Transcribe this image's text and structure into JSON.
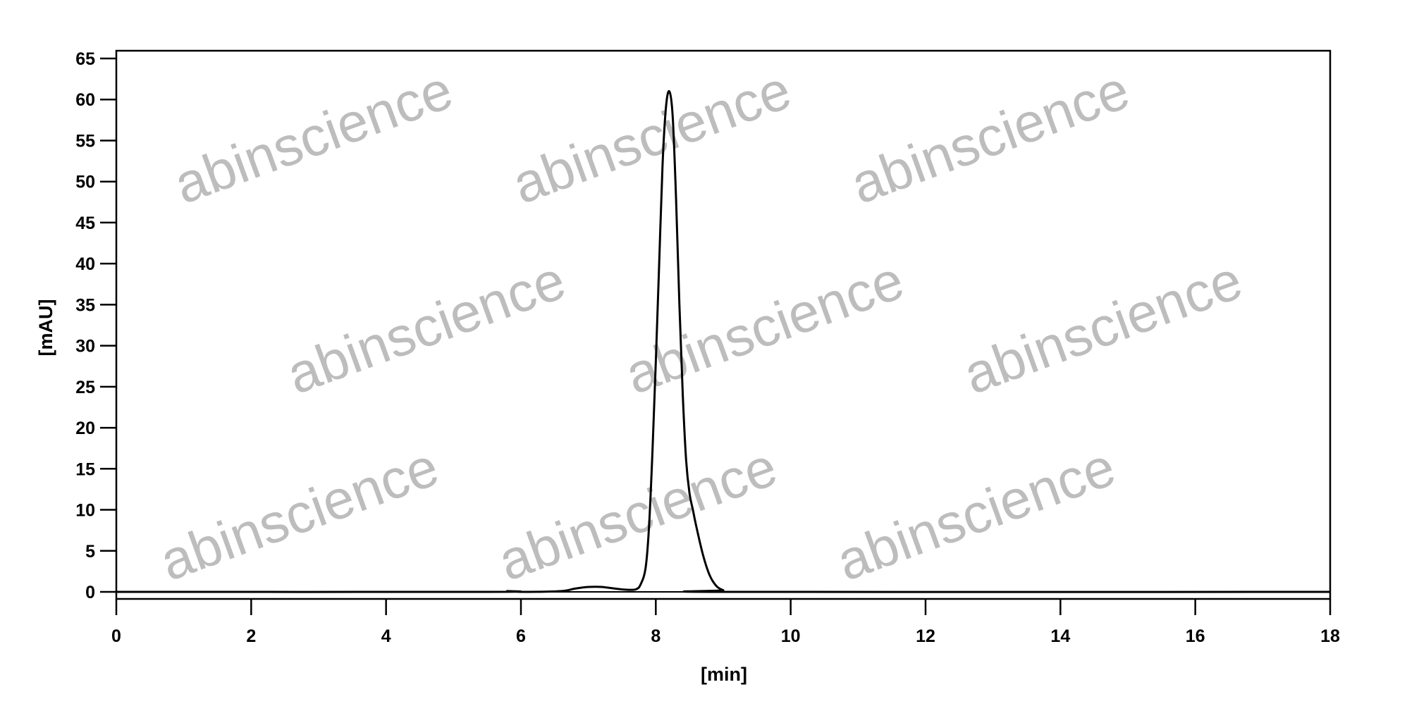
{
  "chart_data": {
    "type": "line",
    "title": "",
    "xlabel": "[min]",
    "ylabel": "[mAU]",
    "xlim": [
      0,
      18
    ],
    "ylim": [
      -0.9,
      65
    ],
    "xticks": [
      0,
      2,
      4,
      6,
      8,
      10,
      12,
      14,
      16,
      18
    ],
    "yticks": [
      0,
      5,
      10,
      15,
      20,
      25,
      30,
      35,
      40,
      45,
      50,
      55,
      60,
      65
    ],
    "grid": false,
    "line_color": "#000000",
    "series": [
      {
        "x": [
          0,
          5.5,
          5.8,
          6.0,
          6.6,
          6.8,
          7.0,
          7.2,
          7.5,
          7.7,
          7.78,
          7.85,
          7.9,
          7.95,
          8.0,
          8.05,
          8.1,
          8.15,
          8.2,
          8.25,
          8.3,
          8.35,
          8.4,
          8.45,
          8.5,
          8.55,
          8.6,
          8.7,
          8.8,
          8.9,
          9.0,
          9.1,
          18
        ],
        "y": [
          0,
          0,
          0.1,
          0,
          0.1,
          0.4,
          0.6,
          0.6,
          0.3,
          0.3,
          1.0,
          3,
          8,
          17,
          28,
          40,
          52,
          59,
          61,
          58,
          48,
          35,
          24,
          16,
          12,
          10,
          8,
          4.5,
          2,
          0.7,
          0.2,
          0,
          0
        ]
      }
    ]
  },
  "watermark": {
    "text": "abinscience",
    "color": "#bdbdbd"
  }
}
